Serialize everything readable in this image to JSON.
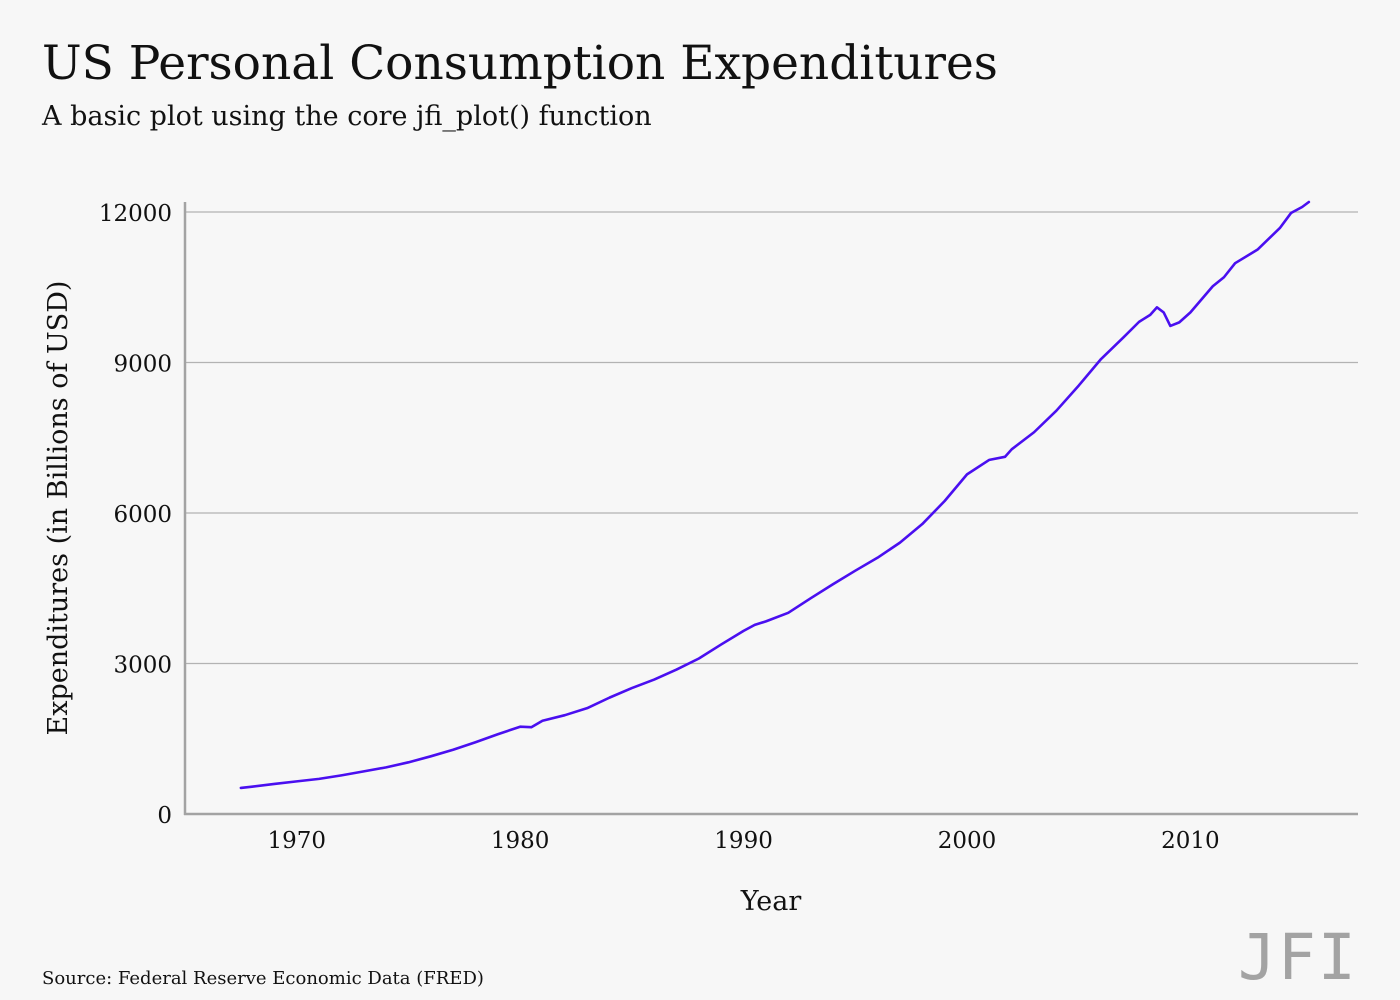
{
  "header": {
    "title": "US Personal Consumption Expenditures",
    "subtitle": "A basic plot using the core jfi_plot() function"
  },
  "footer": {
    "source": "Source: Federal Reserve Economic Data (FRED)",
    "logo": "JFI"
  },
  "colors": {
    "background": "#f7f7f7",
    "line": "#4a0ff0",
    "grid": "#b3b3b3",
    "axis": "#a3a3a3",
    "logo": "#a3a3a3"
  },
  "chart_data": {
    "type": "line",
    "title": "US Personal Consumption Expenditures",
    "subtitle": "A basic plot using the core jfi_plot() function",
    "xlabel": "Year",
    "ylabel": "Expenditures (in Billions of USD)",
    "xlim": [
      1965.0,
      2017.5
    ],
    "ylim": [
      0,
      12200
    ],
    "x_ticks": [
      1970,
      1980,
      1990,
      2000,
      2010
    ],
    "y_ticks": [
      0,
      3000,
      6000,
      9000,
      12000
    ],
    "grid": "horizontal",
    "legend": "none",
    "series": [
      {
        "x": [
          1967.5,
          1968,
          1969,
          1970,
          1971,
          1972,
          1973,
          1974,
          1975,
          1976,
          1977,
          1978,
          1979,
          1980,
          1980.5,
          1981,
          1982,
          1983,
          1984,
          1985,
          1986,
          1986.5,
          1987,
          1988,
          1989,
          1990,
          1990.5,
          1991,
          1992,
          1993,
          1994,
          1995,
          1996,
          1997,
          1998,
          1999,
          2000,
          2001,
          2001.7,
          2002,
          2003,
          2004,
          2005,
          2006,
          2007,
          2007.7,
          2008.2,
          2008.5,
          2008.8,
          2009.1,
          2009.5,
          2010,
          2011,
          2011.5,
          2012,
          2013,
          2014,
          2014.5,
          2015,
          2015.3
        ],
        "values": [
          520,
          545,
          600,
          650,
          700,
          770,
          850,
          930,
          1030,
          1150,
          1280,
          1430,
          1590,
          1740,
          1730,
          1860,
          1970,
          2110,
          2320,
          2510,
          2680,
          2780,
          2880,
          3100,
          3380,
          3650,
          3770,
          3840,
          4010,
          4300,
          4580,
          4850,
          5110,
          5410,
          5780,
          6240,
          6770,
          7060,
          7120,
          7270,
          7610,
          8040,
          8540,
          9070,
          9500,
          9810,
          9950,
          10100,
          10000,
          9730,
          9800,
          10000,
          10520,
          10700,
          10980,
          11250,
          11680,
          11980,
          12100,
          12200
        ]
      }
    ]
  }
}
